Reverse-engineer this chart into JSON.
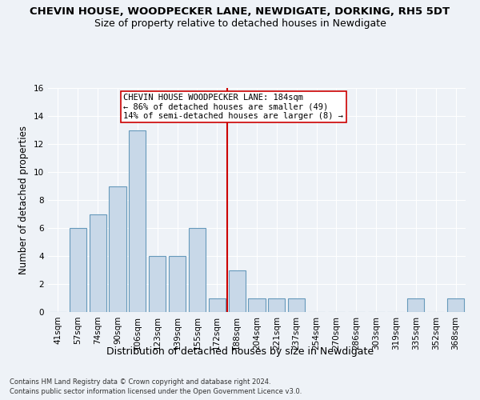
{
  "title": "CHEVIN HOUSE, WOODPECKER LANE, NEWDIGATE, DORKING, RH5 5DT",
  "subtitle": "Size of property relative to detached houses in Newdigate",
  "xlabel": "Distribution of detached houses by size in Newdigate",
  "ylabel": "Number of detached properties",
  "categories": [
    "41sqm",
    "57sqm",
    "74sqm",
    "90sqm",
    "106sqm",
    "123sqm",
    "139sqm",
    "155sqm",
    "172sqm",
    "188sqm",
    "204sqm",
    "221sqm",
    "237sqm",
    "254sqm",
    "270sqm",
    "286sqm",
    "303sqm",
    "319sqm",
    "335sqm",
    "352sqm",
    "368sqm"
  ],
  "values": [
    0,
    6,
    7,
    9,
    13,
    4,
    4,
    6,
    1,
    3,
    1,
    1,
    1,
    0,
    0,
    0,
    0,
    0,
    1,
    0,
    1
  ],
  "bar_color": "#c8d8e8",
  "bar_edge_color": "#6699bb",
  "vline_x_index": 8.5,
  "vline_color": "#cc0000",
  "annotation_text": "CHEVIN HOUSE WOODPECKER LANE: 184sqm\n← 86% of detached houses are smaller (49)\n14% of semi-detached houses are larger (8) →",
  "annotation_box_color": "#ffffff",
  "annotation_box_edge": "#cc0000",
  "ylim": [
    0,
    16
  ],
  "yticks": [
    0,
    2,
    4,
    6,
    8,
    10,
    12,
    14,
    16
  ],
  "title_fontsize": 9.5,
  "subtitle_fontsize": 9,
  "xlabel_fontsize": 9,
  "ylabel_fontsize": 8.5,
  "tick_fontsize": 7.5,
  "annotation_fontsize": 7.5,
  "footnote1": "Contains HM Land Registry data © Crown copyright and database right 2024.",
  "footnote2": "Contains public sector information licensed under the Open Government Licence v3.0.",
  "background_color": "#eef2f7",
  "plot_background": "#eef2f7",
  "grid_color": "#ffffff"
}
